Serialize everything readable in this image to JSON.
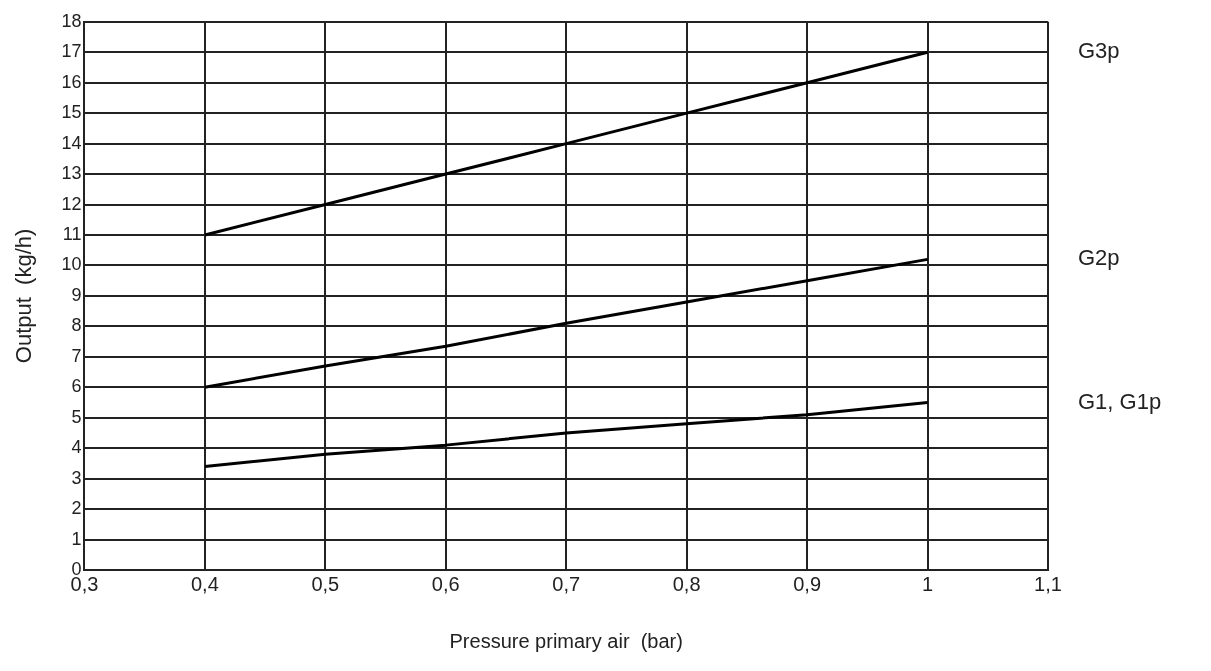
{
  "chart_data": {
    "type": "line",
    "xlabel": "Pressure primary air  (bar)",
    "ylabel": "Output  (kg/h)",
    "x": [
      0.4,
      0.5,
      0.6,
      0.7,
      0.8,
      0.9,
      1.0
    ],
    "series": [
      {
        "name": "G3p",
        "color": "#000000",
        "values": [
          11,
          12,
          13,
          14,
          15,
          16,
          17
        ]
      },
      {
        "name": "G2p",
        "color": "#000000",
        "values": [
          6,
          6.7,
          7.35,
          8.1,
          8.8,
          9.5,
          10.2
        ]
      },
      {
        "name": "G1, G1p",
        "color": "#000000",
        "values": [
          3.4,
          3.8,
          4.1,
          4.5,
          4.8,
          5.1,
          5.5
        ]
      }
    ],
    "xlim": [
      0.3,
      1.1
    ],
    "xticks": [
      {
        "value": 0.3,
        "label": "0,3"
      },
      {
        "value": 0.4,
        "label": "0,4"
      },
      {
        "value": 0.5,
        "label": "0,5"
      },
      {
        "value": 0.6,
        "label": "0,6"
      },
      {
        "value": 0.7,
        "label": "0,7"
      },
      {
        "value": 0.8,
        "label": "0,8"
      },
      {
        "value": 0.9,
        "label": "0,9"
      },
      {
        "value": 1,
        "label": "1"
      },
      {
        "value": 1.1,
        "label": "1,1"
      }
    ],
    "ylim": [
      0,
      18
    ],
    "yticks": [
      0,
      1,
      2,
      3,
      4,
      5,
      6,
      7,
      8,
      9,
      10,
      11,
      12,
      13,
      14,
      15,
      16,
      17,
      18
    ],
    "grid": true,
    "legend": false,
    "marker": "none",
    "line_style": "solid"
  }
}
